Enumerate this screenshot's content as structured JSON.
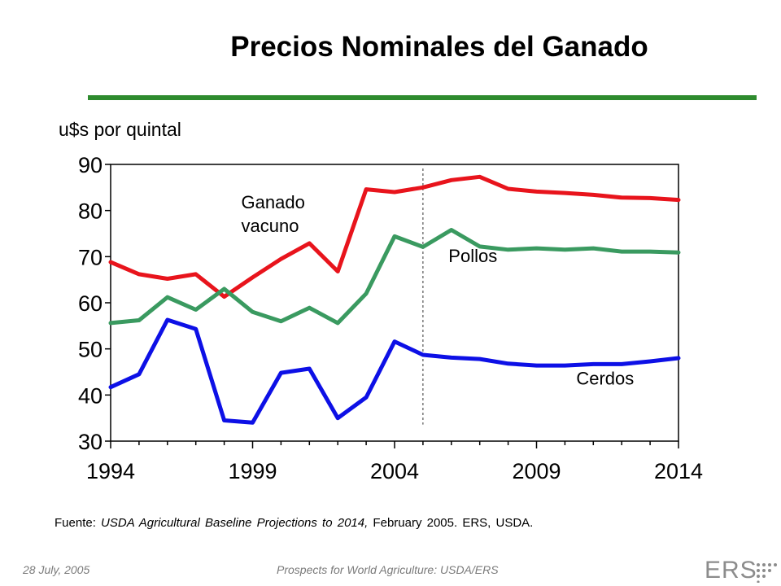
{
  "chart_data": {
    "type": "line",
    "title": "Precios Nominales del Ganado",
    "ylabel": "u$s por quintal",
    "xlabel": "",
    "xlim": [
      1994,
      2014
    ],
    "ylim": [
      30,
      90
    ],
    "x_ticks": [
      1994,
      1999,
      2004,
      2009,
      2014
    ],
    "y_ticks": [
      30,
      40,
      50,
      60,
      70,
      80,
      90
    ],
    "projection_start": 2005,
    "grid": false,
    "x": [
      1994,
      1995,
      1996,
      1997,
      1998,
      1999,
      2000,
      2001,
      2002,
      2003,
      2004,
      2005,
      2006,
      2007,
      2008,
      2009,
      2010,
      2011,
      2012,
      2013,
      2014
    ],
    "series": [
      {
        "name": "Ganado vacuno",
        "color": "#e8141c",
        "values": [
          68.8,
          66.2,
          65.2,
          66.2,
          61.3,
          65.5,
          69.5,
          72.9,
          66.8,
          84.6,
          84.0,
          85.0,
          86.6,
          87.3,
          84.7,
          84.1,
          83.8,
          83.4,
          82.8,
          82.7,
          82.3
        ]
      },
      {
        "name": "Pollos",
        "color": "#3a9a60",
        "values": [
          55.6,
          56.2,
          61.2,
          58.5,
          63.0,
          58.0,
          56.0,
          58.9,
          55.6,
          62.0,
          74.4,
          72.1,
          75.8,
          72.2,
          71.5,
          71.8,
          71.5,
          71.8,
          71.1,
          71.1,
          70.9
        ]
      },
      {
        "name": "Cerdos",
        "color": "#0d10e6",
        "values": [
          41.7,
          44.5,
          56.3,
          54.3,
          34.5,
          34.0,
          44.8,
          45.7,
          35.0,
          39.5,
          51.6,
          48.7,
          48.1,
          47.8,
          46.8,
          46.4,
          46.4,
          46.7,
          46.7,
          47.3,
          48.0
        ]
      }
    ],
    "annotations": [
      {
        "text_lines": [
          "Ganado",
          "vacuno"
        ],
        "series": "Ganado vacuno"
      },
      {
        "text_lines": [
          "Pollos"
        ],
        "series": "Pollos"
      },
      {
        "text_lines": [
          "Cerdos"
        ],
        "series": "Cerdos"
      }
    ]
  },
  "source": {
    "prefix": "Fuente: ",
    "italic": "USDA Agricultural Baseline Projections to 2014,",
    "suffix": " February 2005. ERS, USDA."
  },
  "footer": {
    "date": "28 July, 2005",
    "title": "Prospects for World Agriculture:  USDA/ERS",
    "logo_text": "ERS"
  }
}
